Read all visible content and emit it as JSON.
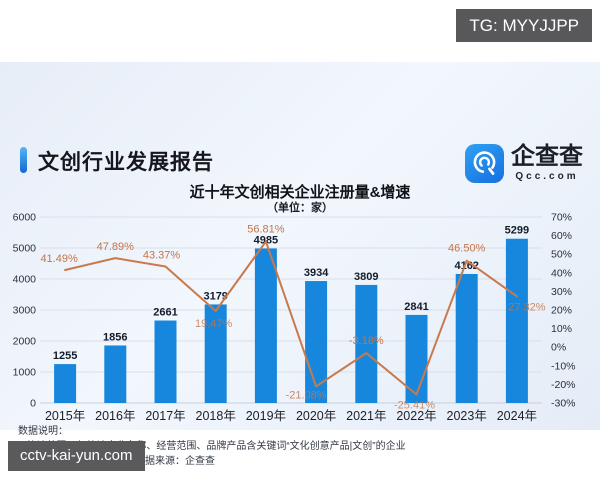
{
  "overlay": {
    "telegram_badge": "TG: MYYJJPP",
    "site_watermark": "cctv-kai-yun.com"
  },
  "report": {
    "title": "文创行业发展报告",
    "logo": {
      "name": "企查查",
      "domain": "Qcc.com"
    }
  },
  "chart_data": {
    "type": "bar+line",
    "title": "近十年文创相关企业注册量&增速",
    "subtitle": "（单位：家）",
    "categories": [
      "2015年",
      "2016年",
      "2017年",
      "2018年",
      "2019年",
      "2020年",
      "2021年",
      "2022年",
      "2023年",
      "2024年"
    ],
    "series": [
      {
        "name": "注册量",
        "type": "bar",
        "axis": "left",
        "values": [
          1255,
          1856,
          2661,
          3179,
          4985,
          3934,
          3809,
          2841,
          4162,
          5299
        ]
      },
      {
        "name": "增速",
        "type": "line",
        "axis": "right",
        "unit": "%",
        "values": [
          41.49,
          47.89,
          43.37,
          19.47,
          56.81,
          -21.08,
          -3.18,
          -25.41,
          46.5,
          27.32
        ]
      }
    ],
    "left_axis": {
      "min": 0,
      "max": 6000,
      "ticks": [
        6000,
        5000,
        4000,
        3000,
        2000,
        1000,
        0
      ]
    },
    "right_axis": {
      "min": -30,
      "max": 70,
      "tick_step": 10,
      "ticks": [
        "70%",
        "60%",
        "50%",
        "40%",
        "30%",
        "20%",
        "10%",
        "0%",
        "-10%",
        "-20%",
        "-30%"
      ]
    },
    "colors": {
      "bar": "#1787dd",
      "line": "#c9794b",
      "percent_label": "#c4744a",
      "value_label": "#141c2b",
      "grid": "#d9dfe9"
    },
    "legend": "none",
    "grid": true
  },
  "notes": {
    "heading": "数据说明：",
    "line1": "1.统计范围：仅统计企业名称、经营范围、品牌产品含关键词“文化创意产品|文创”的企业",
    "line2": "2.统计时间：2025/5/29  3.数据来源：企查查"
  }
}
